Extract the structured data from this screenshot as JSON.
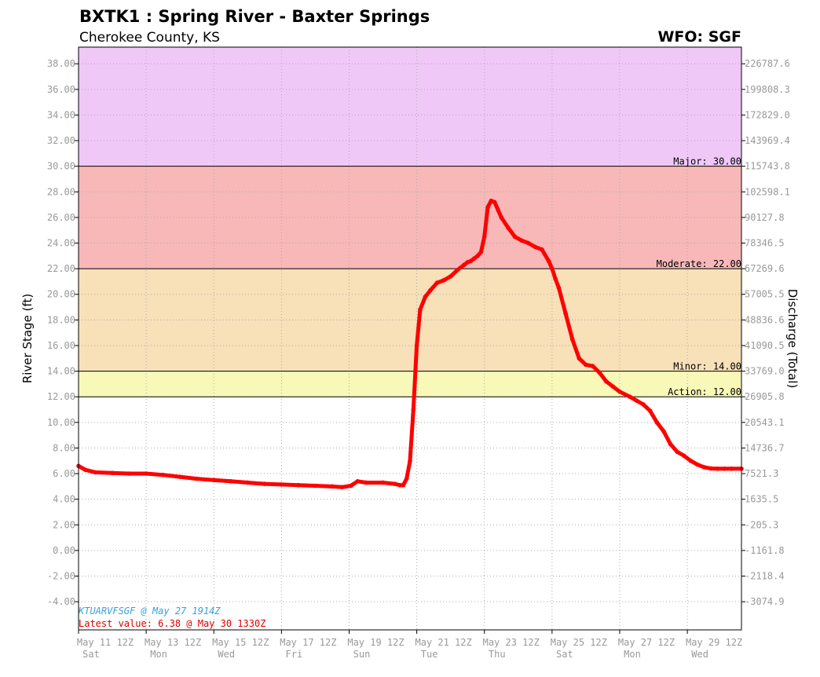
{
  "header": {
    "title": "BXTK1 : Spring River - Baxter Springs",
    "subtitle": "Cherokee County, KS",
    "wfo": "WFO: SGF"
  },
  "notes": {
    "product": "KTUARVFSGF @ May 27 1914Z",
    "latest": "Latest value: 6.38 @ May 30 1330Z"
  },
  "colors": {
    "major": "#f0c8f8",
    "moderate": "#f8b8b8",
    "minor": "#f8e0b8",
    "action": "#f8f8b8",
    "series": "#ff0000",
    "product": "#3aa0e0",
    "latest": "#dd0000"
  },
  "chart_data": {
    "type": "line",
    "xlabel": "",
    "ylabel": "River Stage (ft)",
    "y2label": "Discharge (Total)",
    "ylim": [
      -6.2,
      39.3
    ],
    "xlim": [
      0.5,
      20.1
    ],
    "y_ticks": [
      "38.00",
      "36.00",
      "34.00",
      "32.00",
      "30.00",
      "28.00",
      "26.00",
      "24.00",
      "22.00",
      "20.00",
      "18.00",
      "16.00",
      "14.00",
      "12.00",
      "10.00",
      "8.00",
      "6.00",
      "4.00",
      "2.00",
      "0.00",
      "-2.00",
      "-4.00"
    ],
    "y_tick_values": [
      38,
      36,
      34,
      32,
      30,
      28,
      26,
      24,
      22,
      20,
      18,
      16,
      14,
      12,
      10,
      8,
      6,
      4,
      2,
      0,
      -2,
      -4
    ],
    "y2_ticks": [
      "226787.6",
      "199808.3",
      "172829.0",
      "143969.4",
      "115743.8",
      "102598.1",
      "90127.8",
      "78346.5",
      "67269.6",
      "57005.5",
      "48836.6",
      "41090.5",
      "33769.0",
      "26905.8",
      "20543.1",
      "14736.7",
      "7521.3",
      "1635.5",
      "-205.3",
      "-1161.8",
      "-2118.4",
      "-3074.9"
    ],
    "x_ticks": [
      {
        "x": 0.5,
        "label": "May 11 12Z",
        "day": "Sat"
      },
      {
        "x": 2.5,
        "label": "May 13 12Z",
        "day": "Mon"
      },
      {
        "x": 4.5,
        "label": "May 15 12Z",
        "day": "Wed"
      },
      {
        "x": 6.5,
        "label": "May 17 12Z",
        "day": "Fri"
      },
      {
        "x": 8.5,
        "label": "May 19 12Z",
        "day": "Sun"
      },
      {
        "x": 10.5,
        "label": "May 21 12Z",
        "day": "Tue"
      },
      {
        "x": 12.5,
        "label": "May 23 12Z",
        "day": "Thu"
      },
      {
        "x": 14.5,
        "label": "May 25 12Z",
        "day": "Sat"
      },
      {
        "x": 16.5,
        "label": "May 27 12Z",
        "day": "Mon"
      },
      {
        "x": 18.5,
        "label": "May 29 12Z",
        "day": "Wed"
      }
    ],
    "bands": [
      {
        "name": "major",
        "from": 30,
        "to": 39.3
      },
      {
        "name": "moderate",
        "from": 22,
        "to": 30
      },
      {
        "name": "minor",
        "from": 14,
        "to": 22
      },
      {
        "name": "action",
        "from": 12,
        "to": 14
      }
    ],
    "thresholds": [
      {
        "label": "Major: 30.00",
        "value": 30
      },
      {
        "label": "Moderate: 22.00",
        "value": 22
      },
      {
        "label": "Minor: 14.00",
        "value": 14
      },
      {
        "label": "Action: 12.00",
        "value": 12
      }
    ],
    "series": [
      {
        "x": [
          0.5,
          0.7,
          1.0,
          1.5,
          2.0,
          2.5,
          3.0,
          3.5,
          4.0,
          4.5,
          5.0,
          5.5,
          6.0,
          6.5,
          7.0,
          7.5,
          8.0,
          8.3,
          8.55,
          8.75,
          9.0,
          9.5,
          9.85,
          10.0,
          10.1,
          10.2,
          10.3,
          10.4,
          10.5,
          10.6,
          10.75,
          10.9,
          11.1,
          11.3,
          11.5,
          11.7,
          11.9,
          12.0,
          12.1,
          12.2,
          12.3,
          12.4,
          12.5,
          12.6,
          12.7,
          12.8,
          12.9,
          13.0,
          13.2,
          13.4,
          13.6,
          13.8,
          14.0,
          14.2,
          14.4,
          14.5,
          14.6,
          14.7,
          14.9,
          15.1,
          15.3,
          15.5,
          15.7,
          15.9,
          16.1,
          16.3,
          16.5,
          16.8,
          17.0,
          17.2,
          17.4,
          17.6,
          17.8,
          18.0,
          18.2,
          18.4,
          18.6,
          18.8,
          19.0,
          19.2,
          19.4,
          19.6,
          19.8,
          20.1
        ],
        "y": [
          6.6,
          6.3,
          6.1,
          6.05,
          6.0,
          6.0,
          5.9,
          5.75,
          5.6,
          5.5,
          5.4,
          5.3,
          5.2,
          5.15,
          5.1,
          5.05,
          5.0,
          4.95,
          5.05,
          5.4,
          5.3,
          5.3,
          5.2,
          5.1,
          5.1,
          5.6,
          7.0,
          11.0,
          16.0,
          18.8,
          19.8,
          20.3,
          20.9,
          21.1,
          21.4,
          21.9,
          22.3,
          22.5,
          22.6,
          22.8,
          23.0,
          23.3,
          24.5,
          26.8,
          27.3,
          27.2,
          26.6,
          26.0,
          25.2,
          24.5,
          24.2,
          24.0,
          23.7,
          23.5,
          22.6,
          22.0,
          21.2,
          20.5,
          18.5,
          16.5,
          15.0,
          14.5,
          14.4,
          13.9,
          13.2,
          12.8,
          12.4,
          12.0,
          11.7,
          11.4,
          10.9,
          10.0,
          9.3,
          8.3,
          7.7,
          7.4,
          7.0,
          6.7,
          6.5,
          6.4,
          6.38,
          6.38,
          6.38,
          6.38
        ]
      }
    ]
  }
}
